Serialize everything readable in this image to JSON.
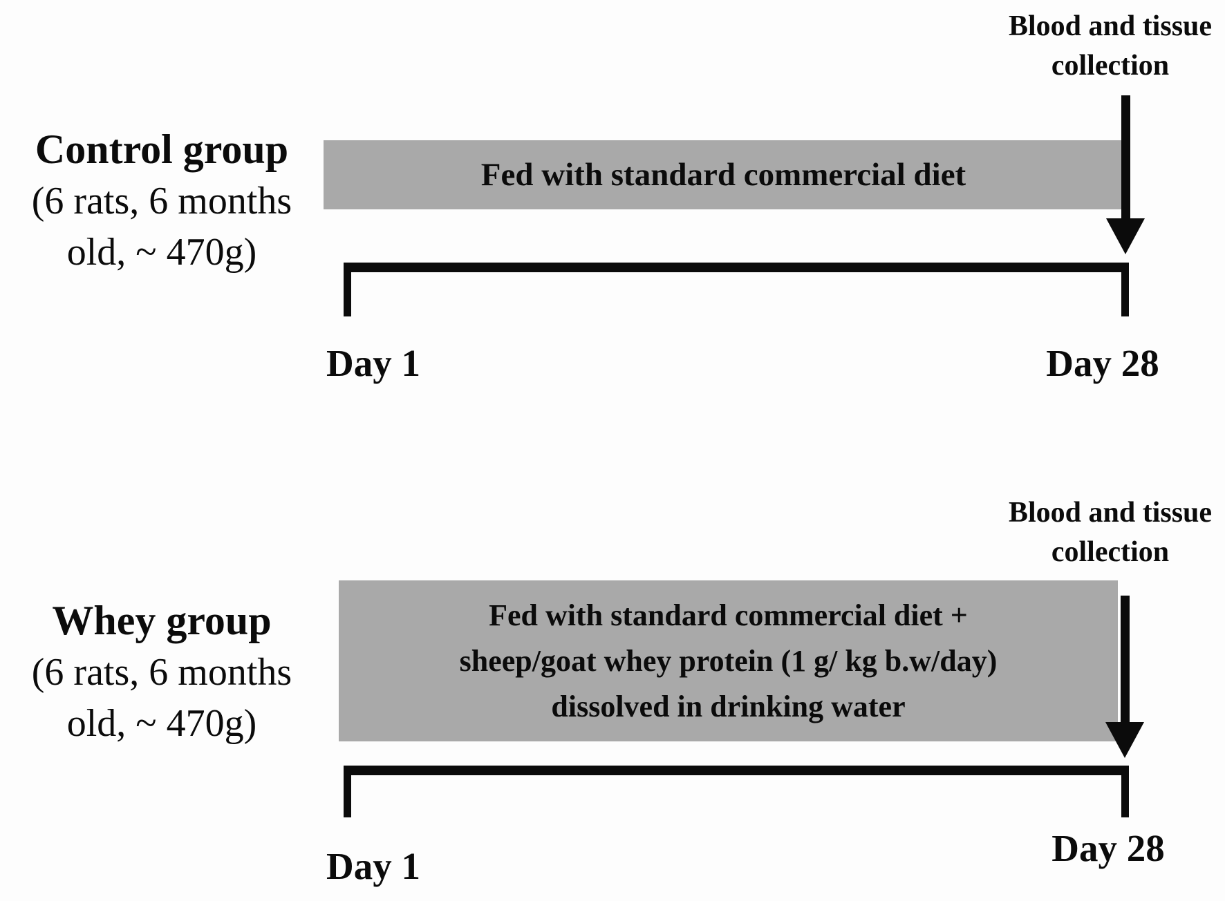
{
  "figure": {
    "type": "experimental-timeline-diagram",
    "background": "#fdfdfd",
    "bar_color": "#a9a9a9",
    "text_color": "#0b0b0b"
  },
  "groups": [
    {
      "name": "Control group",
      "detail_line1": "(6 rats,  6 months",
      "detail_line2": "old, ~ 470g)",
      "bar_lines": [
        "Fed with standard commercial diet"
      ],
      "annotation_line1": "Blood and tissue",
      "annotation_line2": "collection",
      "start_label": "Day 1",
      "end_label": "Day 28"
    },
    {
      "name": "Whey group",
      "detail_line1": "(6 rats,  6 months",
      "detail_line2": "old, ~ 470g)",
      "bar_lines": [
        "Fed with standard commercial diet +",
        "sheep/goat whey protein (1 g/ kg b.w/day)",
        "dissolved in drinking water"
      ],
      "annotation_line1": "Blood and tissue",
      "annotation_line2": "collection",
      "start_label": "Day 1",
      "end_label": "Day 28"
    }
  ]
}
